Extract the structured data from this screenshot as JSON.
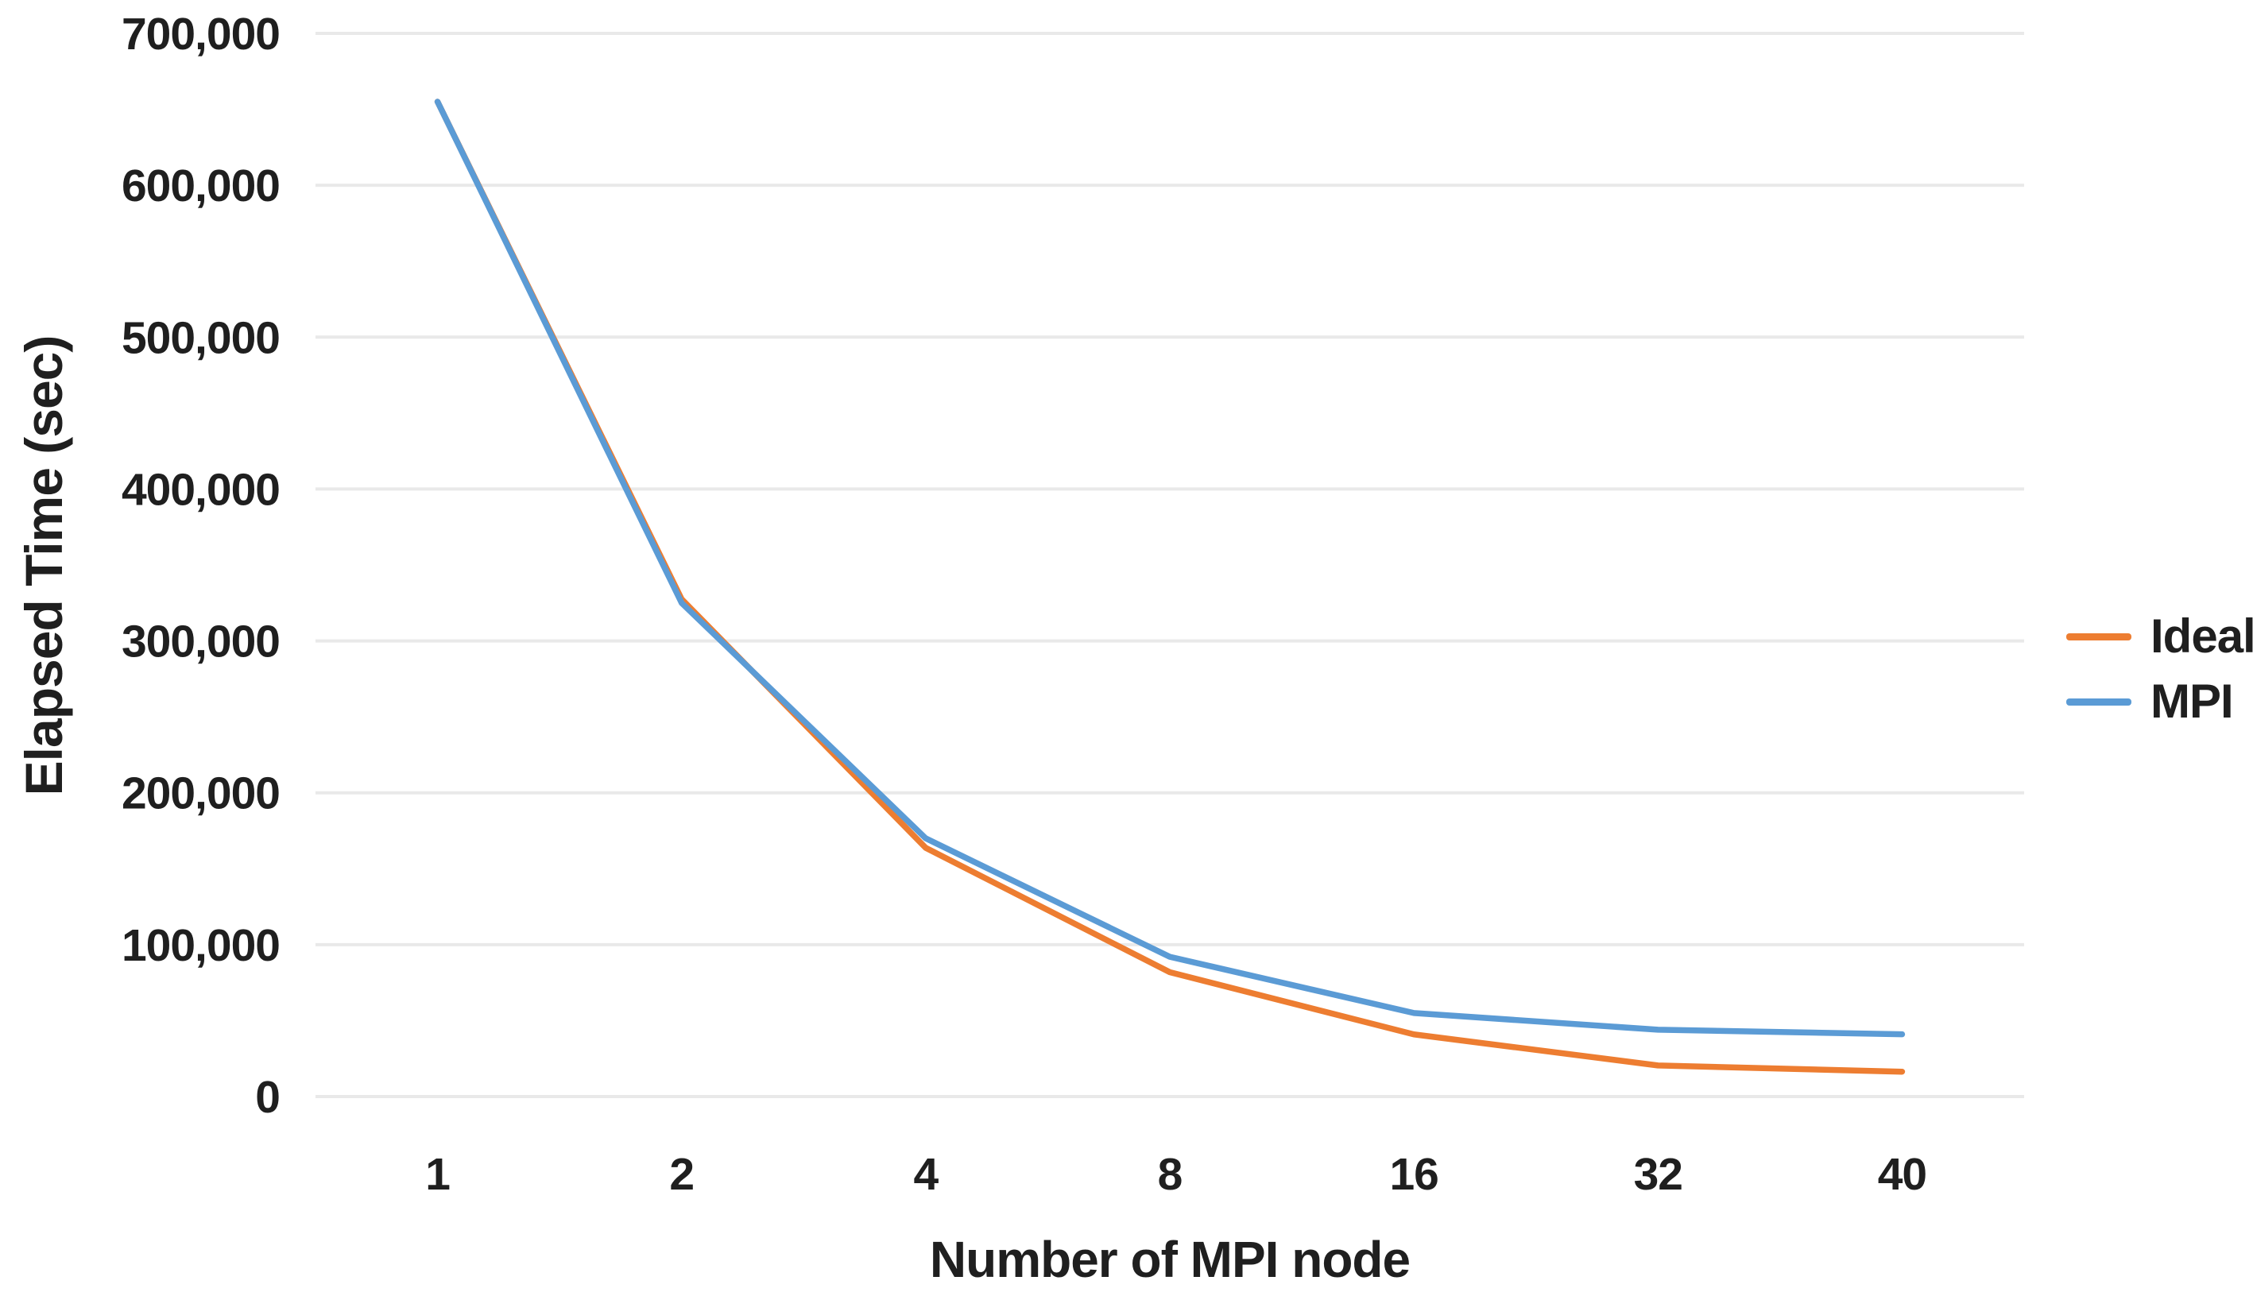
{
  "chart_data": {
    "type": "line",
    "xlabel": "Number of MPI node",
    "ylabel": "Elapsed Time (sec)",
    "categories": [
      "1",
      "2",
      "4",
      "8",
      "16",
      "32",
      "40"
    ],
    "series": [
      {
        "name": "Ideal",
        "color": "#ED7D31",
        "values": [
          655000,
          327500,
          163750,
          81875,
          40938,
          20469,
          16375
        ]
      },
      {
        "name": "MPI",
        "color": "#5B9BD5",
        "values": [
          655000,
          325000,
          170000,
          92000,
          55000,
          44000,
          41000
        ]
      }
    ],
    "y_axis": {
      "min": 0,
      "max": 700000,
      "tick_step": 100000,
      "tick_labels": [
        "0",
        "100,000",
        "200,000",
        "300,000",
        "400,000",
        "500,000",
        "600,000",
        "700,000"
      ]
    },
    "x_axis_type": "category",
    "grid": "horizontal",
    "legend_position": "right"
  },
  "styles": {
    "background": "#FFFFFF",
    "grid_color": "#E9E9E9",
    "text_color": "#1F1F1F",
    "ideal_color": "#ED7D31",
    "mpi_color": "#5B9BD5"
  }
}
